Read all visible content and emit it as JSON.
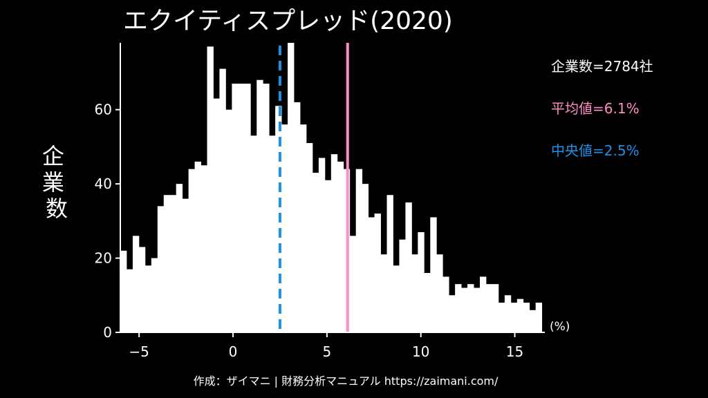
{
  "chart_data": {
    "type": "bar",
    "title": "エクイティスプレッド(2020)",
    "ylabel": "企業数",
    "x_unit": "(%)",
    "xlim": [
      -6,
      16.6
    ],
    "ylim": [
      0,
      78
    ],
    "xticks": [
      -5,
      0,
      5,
      10,
      15
    ],
    "xtick_labels": [
      "−5",
      "0",
      "5",
      "10",
      "15"
    ],
    "yticks": [
      0,
      20,
      40,
      60
    ],
    "bin_start": -6,
    "bin_width": 0.33,
    "values": [
      22,
      17,
      26,
      23,
      18,
      20,
      34,
      37,
      37,
      40,
      36,
      44,
      46,
      45,
      77,
      63,
      71,
      60,
      67,
      67,
      67,
      53,
      68,
      67,
      53,
      61,
      56,
      78,
      62,
      56,
      51,
      43,
      47,
      41,
      48,
      46,
      44,
      26,
      44,
      40,
      31,
      32,
      21,
      37,
      18,
      25,
      35,
      21,
      27,
      16,
      31,
      21,
      15,
      10,
      13,
      12,
      13,
      12,
      15,
      13,
      13,
      8,
      10,
      8,
      9,
      8,
      6,
      8
    ],
    "colors": {
      "bars": "#ffffff",
      "mean": "#ff8cc6",
      "median": "#1e90e6"
    },
    "mean": 6.1,
    "median": 2.5
  },
  "stats": {
    "count": "企業数=2784社",
    "mean": "平均値=6.1%",
    "median": "中央値=2.5%"
  },
  "credit": "作成：ザイマニ | 財務分析マニュアル https://zaimani.com/"
}
